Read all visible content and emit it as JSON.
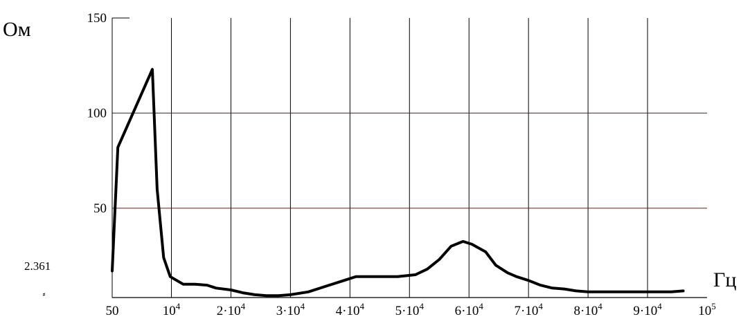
{
  "chart_data": {
    "type": "line",
    "title": "",
    "ylabel": "Ом",
    "xlabel": "Гц",
    "xlim": [
      50,
      100000
    ],
    "ylim": [
      3,
      150
    ],
    "grid": true,
    "y_ticks": [
      {
        "value": 150,
        "label": "150"
      },
      {
        "value": 100,
        "label": "100"
      },
      {
        "value": 50,
        "label": "50"
      }
    ],
    "y_min_label": "2.361",
    "x_ticks": [
      {
        "value": 50,
        "label": "50",
        "base": "50",
        "exp": ""
      },
      {
        "value": 10000,
        "label": "10^4",
        "base": "10",
        "exp": "4"
      },
      {
        "value": 20000,
        "label": "2·10^4",
        "base": "2·10",
        "exp": "4"
      },
      {
        "value": 30000,
        "label": "3·10^4",
        "base": "3·10",
        "exp": "4"
      },
      {
        "value": 40000,
        "label": "4·10^4",
        "base": "4·10",
        "exp": "4"
      },
      {
        "value": 50000,
        "label": "5·10^4",
        "base": "5·10",
        "exp": "4"
      },
      {
        "value": 60000,
        "label": "6·10^4",
        "base": "6·10",
        "exp": "4"
      },
      {
        "value": 70000,
        "label": "7·10^4",
        "base": "7·10",
        "exp": "4"
      },
      {
        "value": 80000,
        "label": "8·10^4",
        "base": "8·10",
        "exp": "4"
      },
      {
        "value": 90000,
        "label": "9·10^4",
        "base": "9·10",
        "exp": "4"
      },
      {
        "value": 100000,
        "label": "10^5",
        "base": "10",
        "exp": "5"
      }
    ],
    "series": [
      {
        "x": [
          50,
          1000,
          6800,
          7600,
          8700,
          9800,
          12000,
          14000,
          16000,
          17500,
          20000,
          22000,
          24000,
          26000,
          28000,
          30000,
          33000,
          36000,
          39000,
          41000,
          43000,
          45000,
          48000,
          51000,
          53000,
          55000,
          57000,
          59000,
          60500,
          62800,
          64500,
          66500,
          68000,
          70000,
          72000,
          74000,
          76000,
          78000,
          80000,
          82000,
          84000,
          86000,
          90000,
          94000,
          96000
        ],
        "y": [
          17,
          82,
          123,
          60,
          24,
          14,
          10,
          10,
          9.5,
          8,
          7,
          5.5,
          4.5,
          4,
          4,
          4.5,
          6,
          9,
          12,
          14,
          14,
          14,
          14,
          15,
          18,
          23,
          30,
          32.5,
          31,
          27,
          20,
          16,
          14,
          12,
          9.5,
          8,
          7.5,
          6.5,
          6,
          6,
          6,
          6,
          6,
          6,
          6.5
        ]
      }
    ]
  }
}
